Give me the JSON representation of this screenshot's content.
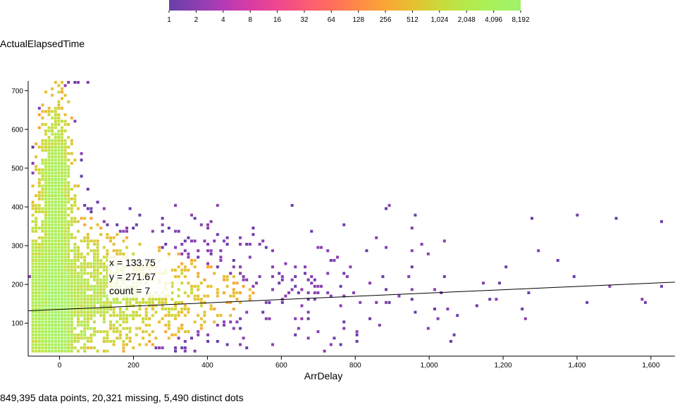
{
  "legend": {
    "ticks": [
      "1",
      "2",
      "4",
      "8",
      "16",
      "32",
      "64",
      "128",
      "256",
      "512",
      "1,024",
      "2,048",
      "4,096",
      "8,192"
    ],
    "colors": [
      "#6a3fa8",
      "#8a3fb0",
      "#b43bb5",
      "#d83ca4",
      "#ee4790",
      "#fa5a76",
      "#ff6d5c",
      "#ff8a45",
      "#f9a636",
      "#e6c031",
      "#cbd93a",
      "#b5e94c",
      "#a7f25c",
      "#9ff26a"
    ]
  },
  "y_axis_title": "ActualElapsedTime",
  "x_axis_title": "ArrDelay",
  "summary": "849,395 data points, 20,321 missing, 5,490 distinct dots",
  "tooltip": {
    "x": "x = 133.75",
    "y": "y = 271.67",
    "count": "count = 7"
  },
  "chart_data": {
    "type": "heatmap",
    "xlabel": "ArrDelay",
    "ylabel": "ActualElapsedTime",
    "xlim": [
      -85,
      1665
    ],
    "ylim": [
      15,
      725
    ],
    "x_ticks": [
      0,
      200,
      400,
      600,
      800,
      1000,
      1200,
      1400,
      1600
    ],
    "x_tick_labels": [
      "0",
      "200",
      "400",
      "600",
      "800",
      "1,000",
      "1,200",
      "1,400",
      "1,600"
    ],
    "y_ticks": [
      100,
      200,
      300,
      400,
      500,
      600,
      700
    ],
    "y_tick_labels": [
      "100",
      "200",
      "300",
      "400",
      "500",
      "600",
      "700"
    ],
    "color_scale": "log2",
    "count_range": [
      1,
      8192
    ],
    "regression_line": {
      "x": [
        -85,
        1665
      ],
      "y": [
        132,
        206
      ]
    },
    "highlight": {
      "x": 133.75,
      "y": 271.67,
      "count": 7
    }
  }
}
